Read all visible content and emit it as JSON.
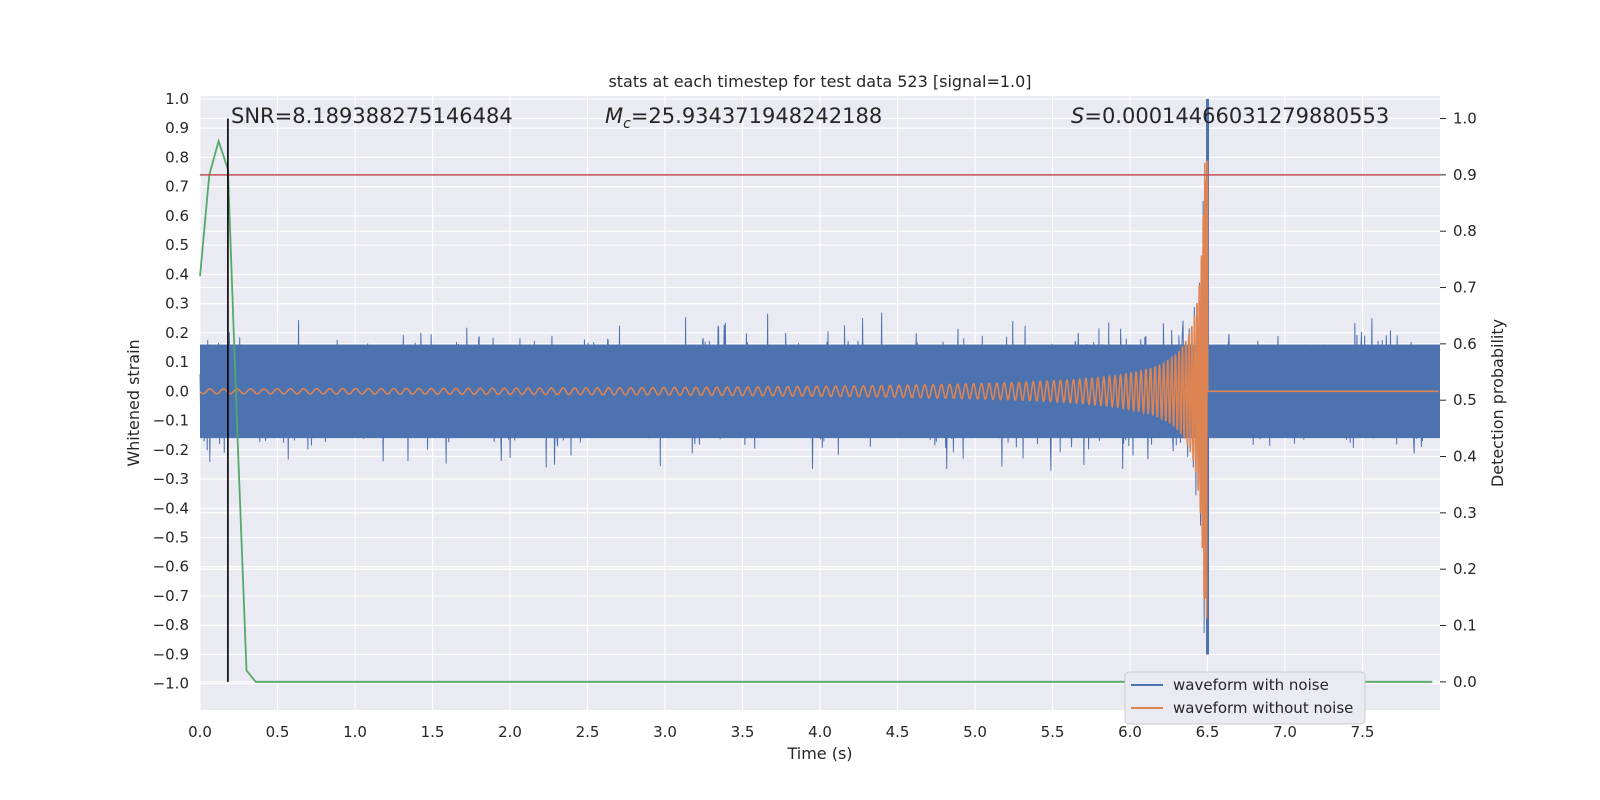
{
  "chart_data": {
    "type": "line",
    "title": "stats at each timestep for test data 523 [signal=1.0]",
    "xlabel": "Time (s)",
    "ylabel": "Whitened strain",
    "y2label": "Detection probability",
    "xlim": [
      0.0,
      8.0
    ],
    "ylim": [
      -1.09,
      1.01
    ],
    "y2lim": [
      -0.05,
      1.04
    ],
    "xticks": [
      "0.0",
      "0.5",
      "1.0",
      "1.5",
      "2.0",
      "2.5",
      "3.0",
      "3.5",
      "4.0",
      "4.5",
      "5.0",
      "5.5",
      "6.0",
      "6.5",
      "7.0",
      "7.5"
    ],
    "yticks": [
      "1.0",
      "0.9",
      "0.8",
      "0.7",
      "0.6",
      "0.5",
      "0.4",
      "0.3",
      "0.2",
      "0.1",
      "0.0",
      "−0.1",
      "−0.2",
      "−0.3",
      "−0.4",
      "−0.5",
      "−0.6",
      "−0.7",
      "−0.8",
      "−0.9",
      "−1.0"
    ],
    "y2ticks": [
      "1.0",
      "0.9",
      "0.8",
      "0.7",
      "0.6",
      "0.5",
      "0.4",
      "0.3",
      "0.2",
      "0.1",
      "0.0"
    ],
    "grid": true,
    "annotations": {
      "snr": "SNR=8.189388275146484",
      "mc_symbol": "M",
      "mc_sub": "c",
      "mc_value": "=25.934371948242188",
      "s_symbol": "S",
      "s_value": "=0.00014466031279880553"
    },
    "threshold_y2": 0.9,
    "marker_x": 0.18,
    "merger_time": 6.5,
    "series": [
      {
        "name": "waveform with noise",
        "color": "#4c72b0",
        "kind": "noisy strain",
        "noise_band": [
          -0.25,
          0.25
        ]
      },
      {
        "name": "waveform without noise",
        "color": "#dd8452",
        "kind": "chirp",
        "peak_amplitude": 0.79
      },
      {
        "kind": "detection probability",
        "color": "#55a868",
        "x": [
          0.0,
          0.06,
          0.12,
          0.18,
          0.24,
          0.3,
          0.36,
          0.42,
          1.0,
          2.0,
          3.0,
          4.0,
          5.0,
          6.0,
          7.0,
          7.95
        ],
        "values": [
          0.72,
          0.9,
          0.96,
          0.91,
          0.45,
          0.02,
          0.0,
          0.0,
          0.0,
          0.0,
          0.0,
          0.0,
          0.0,
          0.0,
          0.0,
          0.0
        ]
      },
      {
        "kind": "threshold",
        "color": "#c44e52"
      }
    ],
    "legend": {
      "position": "lower-right",
      "entries": [
        "waveform with noise",
        "waveform without noise"
      ]
    }
  }
}
